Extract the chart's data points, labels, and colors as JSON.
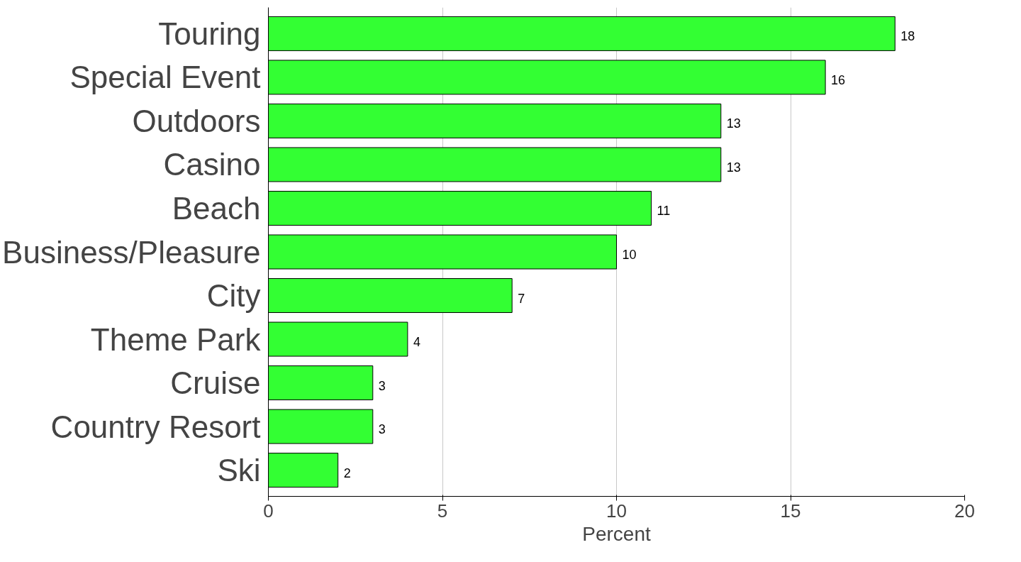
{
  "chart_data": {
    "type": "bar",
    "orientation": "horizontal",
    "xlabel": "Percent",
    "categories": [
      "Touring",
      "Special Event",
      "Outdoors",
      "Casino",
      "Beach",
      "Business/Pleasure",
      "City",
      "Theme Park",
      "Cruise",
      "Country Resort",
      "Ski"
    ],
    "values": [
      18,
      16,
      13,
      13,
      11,
      10,
      7,
      4,
      3,
      3,
      2
    ],
    "color": "#33ff33",
    "xlim": [
      0,
      20
    ],
    "xticks": [
      0,
      5,
      10,
      15,
      20
    ],
    "grid": "x",
    "data_labels": true
  }
}
